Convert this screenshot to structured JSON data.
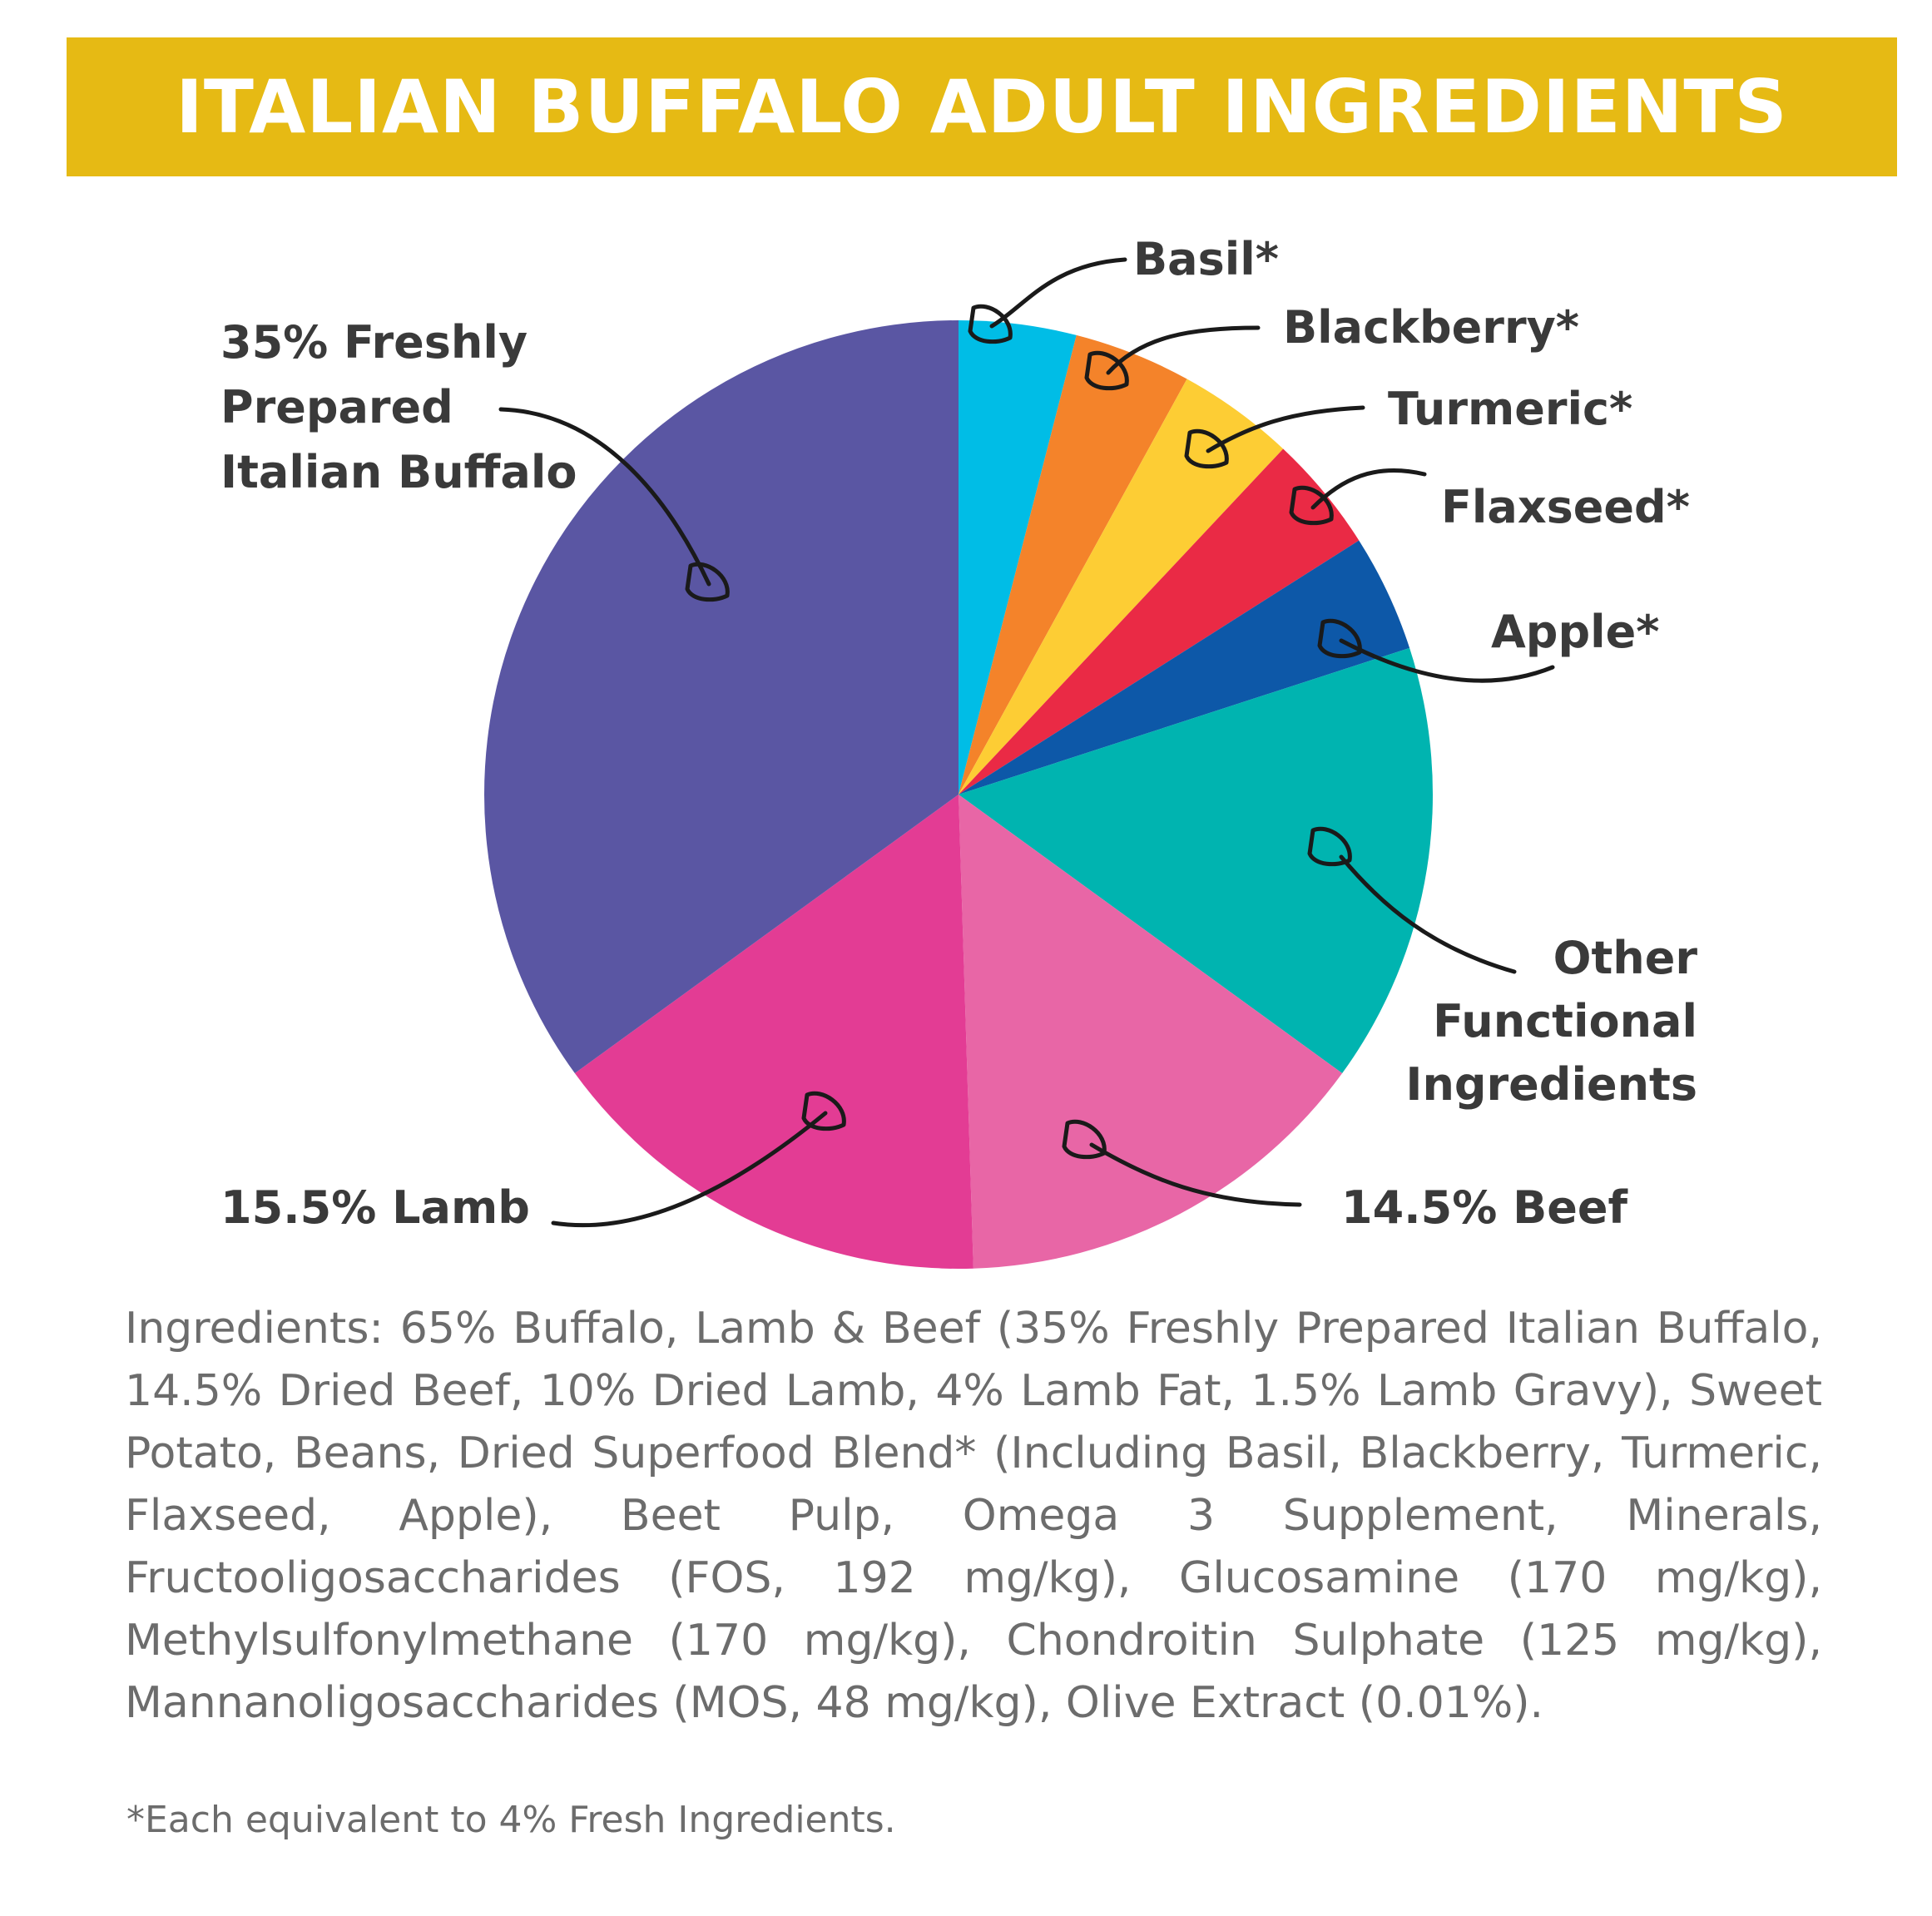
{
  "title": "ITALIAN BUFFALO ADULT INGREDIENTS",
  "colors": {
    "banner": "#e6ba14",
    "banner_text": "#ffffff",
    "label_text": "#3a3a3a",
    "body_text": "#6c6c6c"
  },
  "chart_data": {
    "type": "pie",
    "title": "",
    "start": "12 o'clock, clockwise",
    "slices": [
      {
        "key": "basil",
        "label": "Basil*",
        "value": 4,
        "color": "#00bde6"
      },
      {
        "key": "blackberry",
        "label": "Blackberry*",
        "value": 4,
        "color": "#f4832a"
      },
      {
        "key": "turmeric",
        "label": "Turmeric*",
        "value": 4,
        "color": "#fdcd34"
      },
      {
        "key": "flaxseed",
        "label": "Flaxseed*",
        "value": 4,
        "color": "#ea2a45"
      },
      {
        "key": "apple",
        "label": "Apple*",
        "value": 4,
        "color": "#0d58a8"
      },
      {
        "key": "other",
        "label": [
          "Other",
          "Functional",
          "Ingredients"
        ],
        "value": 15,
        "color": "#00b4b0"
      },
      {
        "key": "beef",
        "label": "14.5% Beef",
        "value": 14.5,
        "color": "#e866a6"
      },
      {
        "key": "lamb",
        "label": "15.5% Lamb",
        "value": 15.5,
        "color": "#e33c94"
      },
      {
        "key": "buffalo",
        "label": [
          "35% Freshly",
          "Prepared",
          "Italian Buffalo"
        ],
        "value": 35,
        "color": "#5a56a3"
      }
    ]
  },
  "ingredients_text": "Ingredients: 65% Buffalo, Lamb & Beef (35% Freshly Prepared Italian Buffalo, 14.5% Dried Beef, 10% Dried Lamb, 4% Lamb Fat, 1.5% Lamb Gravy), Sweet Potato, Beans, Dried Superfood Blend* (Including Basil, Blackberry, Turmeric, Flaxseed, Apple), Beet Pulp, Omega 3 Supplement, Minerals, Fructooligosaccharides (FOS, 192 mg/kg), Glucosamine (170 mg/kg), Methylsulfonylmethane (170 mg/kg), Chondroitin Sulphate (125 mg/kg), Mannanoligosaccharides (MOS, 48 mg/kg), Olive Extract (0.01%).",
  "footnote": "*Each equivalent to 4% Fresh Ingredients."
}
